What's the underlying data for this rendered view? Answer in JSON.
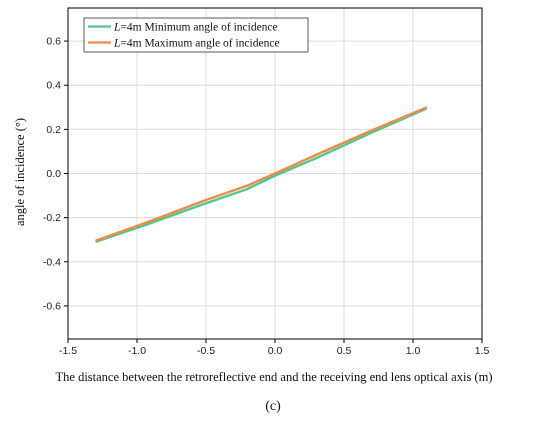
{
  "chart_data": {
    "type": "line",
    "xlabel": "The distance between the retroreflective end and the receiving end lens optical axis (m)",
    "ylabel": "angle of incidence (°)",
    "xlim": [
      -1.5,
      1.5
    ],
    "ylim": [
      -0.75,
      0.75
    ],
    "xticks": [
      "-1.5",
      "-1.0",
      "-0.5",
      "0.0",
      "0.5",
      "1.0",
      "1.5"
    ],
    "yticks": [
      "-0.6",
      "-0.4",
      "-0.2",
      "0.0",
      "0.2",
      "0.4",
      "0.6"
    ],
    "xtick_values": [
      -1.5,
      -1.0,
      -0.5,
      0.0,
      0.5,
      1.0,
      1.5
    ],
    "ytick_values": [
      -0.6,
      -0.4,
      -0.2,
      0.0,
      0.2,
      0.4,
      0.6
    ],
    "grid": true,
    "legend_position": "top-left",
    "series": [
      {
        "name": "L=4m Minimum angle of incidence",
        "legend_italic": "L",
        "legend_rest": "=4m Minimum angle of incidence",
        "color": "#4fc98a",
        "x": [
          -1.3,
          -0.9,
          -0.5,
          -0.2,
          0.0,
          0.3,
          0.7,
          1.1
        ],
        "y": [
          -0.31,
          -0.225,
          -0.135,
          -0.07,
          -0.01,
          0.07,
          0.185,
          0.295
        ]
      },
      {
        "name": "L=4m Maximum angle of incidence",
        "legend_italic": "L",
        "legend_rest": "=4m Maximum angle of incidence",
        "color": "#f08a4b",
        "x": [
          -1.3,
          -0.9,
          -0.5,
          -0.2,
          0.0,
          0.3,
          0.7,
          1.1
        ],
        "y": [
          -0.305,
          -0.215,
          -0.12,
          -0.055,
          0.0,
          0.085,
          0.195,
          0.3
        ]
      }
    ],
    "panel_label": "(c)"
  }
}
